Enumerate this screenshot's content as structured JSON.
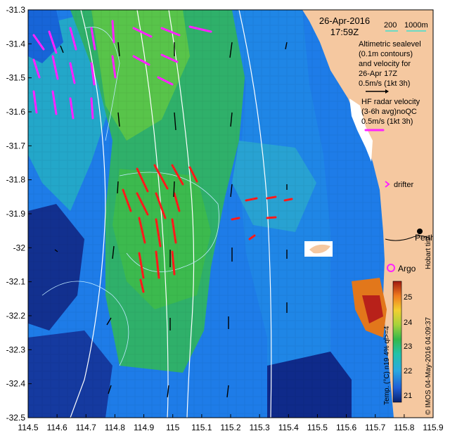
{
  "map": {
    "x_ticks": [
      "114.5",
      "114.6",
      "114.7",
      "114.8",
      "114.9",
      "115",
      "115.1",
      "115.2",
      "115.3",
      "115.4",
      "115.5",
      "115.6",
      "115.7",
      "115.8",
      "115.9"
    ],
    "y_ticks": [
      "-31.3",
      "-31.4",
      "-31.5",
      "-31.6",
      "-31.7",
      "-31.8",
      "-31.9",
      "-32",
      "-32.1",
      "-32.2",
      "-32.3",
      "-32.4",
      "-32.5"
    ],
    "lon_range": [
      114.5,
      115.9
    ],
    "lat_range": [
      -32.5,
      -31.3
    ],
    "colors": {
      "land": "#f5c8a0",
      "ocean_dark": "#102a8c",
      "ocean_mid": "#1e7ce8",
      "ocean_cyan": "#2ab7d6",
      "ocean_green": "#33b84d",
      "ocean_bright": "#7ed23a",
      "radar_vector": "#ff1a1a",
      "altimetry_vector": "#000000",
      "drifter": "#ff22ff",
      "contour": "#ffffff"
    }
  },
  "header": {
    "date": "26-Apr-2016",
    "time": "17:59Z",
    "isobath_200": "200",
    "isobath_1000": "1000m"
  },
  "legend": {
    "altimetry_line1": "Altimetric sealevel",
    "altimetry_line2": "(0.1m contours)",
    "altimetry_line3": "and velocity for",
    "altimetry_line4": "26-Apr 17Z",
    "altimetry_scale": "0.5m/s (1kt 3h)",
    "radar_line1": "HF radar velocity",
    "radar_line2": "(3-6h avg)noQC",
    "radar_scale": "0.5m/s (1kt 3h)",
    "drifter_label": "drifter",
    "city_label": "Perth",
    "argo_label": "Argo",
    "hobart_label": "Hobart tim"
  },
  "colorbar": {
    "title": "Temp. (°C) n19 4% ql>=4",
    "ticks": [
      "25",
      "24",
      "23",
      "22",
      "21"
    ]
  },
  "credit": "© IMOS 04-May-2016 04:09:37"
}
